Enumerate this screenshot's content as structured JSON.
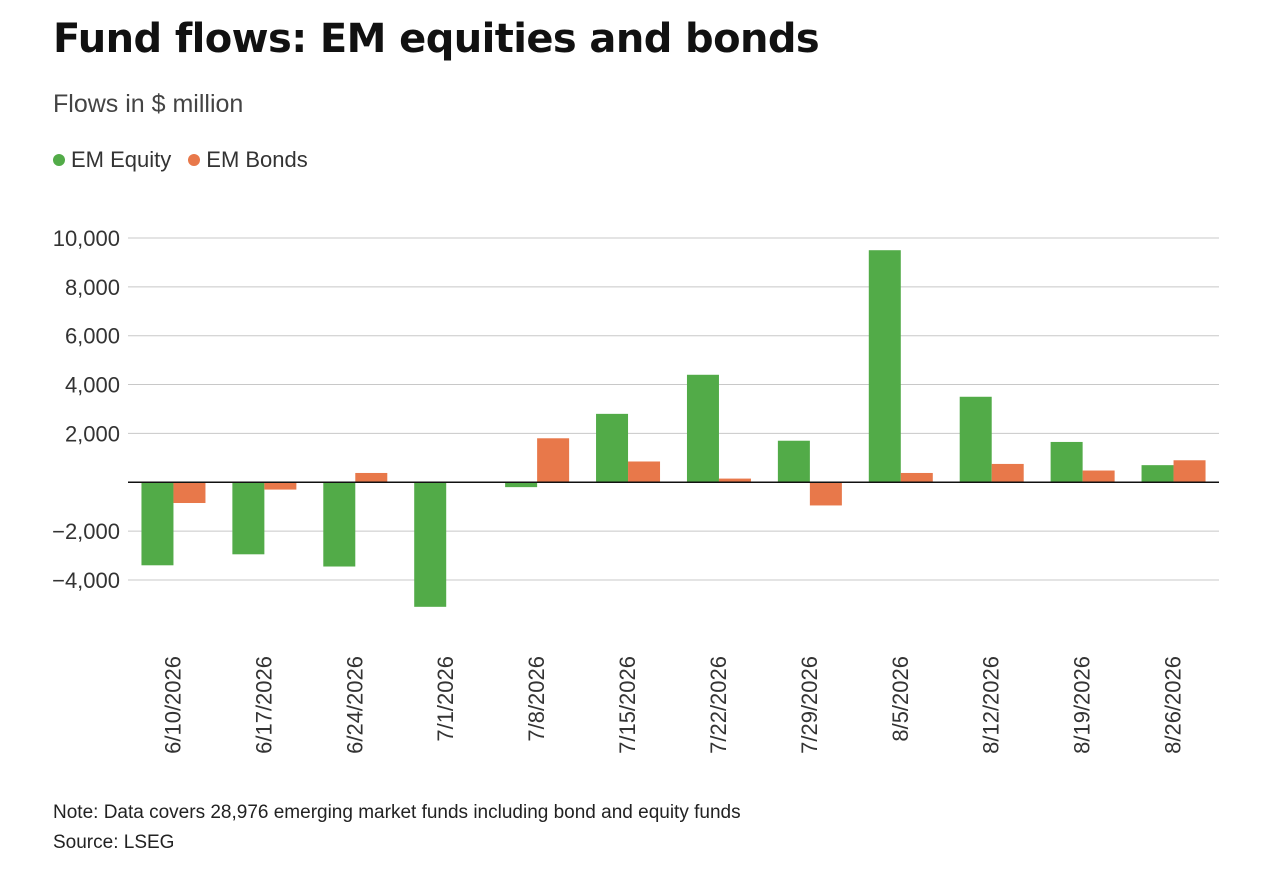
{
  "header": {
    "title": "Fund flows: EM equities and bonds",
    "subtitle": "Flows in $ million"
  },
  "colors": {
    "equity": "#52ab48",
    "bonds": "#e8784a",
    "grid": "#c8c8c8",
    "zero_line": "#111111",
    "tick_text": "#333333"
  },
  "legend": {
    "items": [
      {
        "label": "EM Equity",
        "color": "#52ab48"
      },
      {
        "label": "EM Bonds",
        "color": "#e8784a"
      }
    ],
    "placement": "top-left"
  },
  "chart_data": {
    "type": "bar",
    "categories": [
      "6/10/2026",
      "6/17/2026",
      "6/24/2026",
      "7/1/2026",
      "7/8/2026",
      "7/15/2026",
      "7/22/2026",
      "7/29/2026",
      "8/5/2026",
      "8/12/2026",
      "8/19/2026",
      "8/26/2026"
    ],
    "series": [
      {
        "name": "EM Equity",
        "color": "#52ab48",
        "values": [
          -3400,
          -2950,
          -3450,
          -5100,
          -200,
          2800,
          4400,
          1700,
          9500,
          3500,
          1650,
          700
        ]
      },
      {
        "name": "EM Bonds",
        "color": "#e8784a",
        "values": [
          -850,
          -300,
          380,
          0,
          1800,
          850,
          150,
          -950,
          380,
          750,
          480,
          900
        ]
      }
    ],
    "ylim": [
      -6000,
      10000
    ],
    "yticks": [
      10000,
      8000,
      6000,
      4000,
      2000,
      -2000,
      -4000
    ],
    "ytick_labels": [
      "10,000",
      "8,000",
      "6,000",
      "4,000",
      "2,000",
      "−2,000",
      "−4,000"
    ],
    "grid": true,
    "xlabel": "",
    "ylabel": ""
  },
  "footer": {
    "note": "Note: Data covers 28,976 emerging market funds including bond and equity funds",
    "source": "Source: LSEG"
  }
}
